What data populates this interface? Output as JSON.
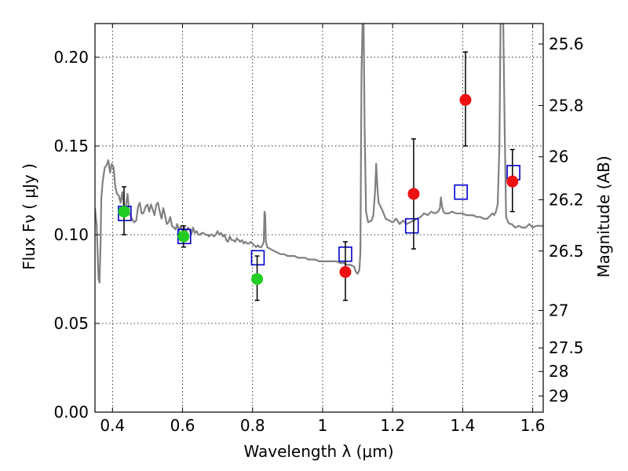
{
  "chart_data": {
    "type": "scatter",
    "xlabel": "Wavelength  λ (μm)",
    "ylabel": "Flux  Fν  ( μJy )",
    "y2label": "Magnitude (AB)",
    "xlim": [
      0.35,
      1.63
    ],
    "ylim": [
      0.0,
      0.219
    ],
    "grid": true,
    "x_ticks": [
      0.4,
      0.6,
      0.8,
      1.0,
      1.2,
      1.4,
      1.6
    ],
    "x_tick_labels": [
      "0.4",
      "0.6",
      "0.8",
      "1",
      "1.2",
      "1.4",
      "1.6"
    ],
    "y_ticks": [
      0.0,
      0.05,
      0.1,
      0.15,
      0.2
    ],
    "y_tick_labels": [
      "0.00",
      "0.05",
      "0.10",
      "0.15",
      "0.20"
    ],
    "y2_ticks": [
      {
        "label": "25.6",
        "flux": 0.2075
      },
      {
        "label": "25.8",
        "flux": 0.1728
      },
      {
        "label": "26",
        "flux": 0.1439
      },
      {
        "label": "26.2",
        "flux": 0.1197
      },
      {
        "label": "26.5",
        "flux": 0.0908
      },
      {
        "label": "27",
        "flux": 0.0573
      },
      {
        "label": "27.5",
        "flux": 0.0362
      },
      {
        "label": "28",
        "flux": 0.0229
      },
      {
        "label": "29",
        "flux": 0.0091
      }
    ],
    "series": [
      {
        "kind": "line",
        "color": "#808080",
        "points": [
          [
            0.35,
            0.115
          ],
          [
            0.355,
            0.105
          ],
          [
            0.36,
            0.075
          ],
          [
            0.363,
            0.073
          ],
          [
            0.366,
            0.095
          ],
          [
            0.368,
            0.12
          ],
          [
            0.372,
            0.13
          ],
          [
            0.378,
            0.138
          ],
          [
            0.383,
            0.139
          ],
          [
            0.388,
            0.142
          ],
          [
            0.393,
            0.135
          ],
          [
            0.398,
            0.14
          ],
          [
            0.403,
            0.138
          ],
          [
            0.408,
            0.127
          ],
          [
            0.413,
            0.123
          ],
          [
            0.418,
            0.122
          ],
          [
            0.423,
            0.118
          ],
          [
            0.428,
            0.124
          ],
          [
            0.433,
            0.115
          ],
          [
            0.438,
            0.116
          ],
          [
            0.443,
            0.123
          ],
          [
            0.448,
            0.112
          ],
          [
            0.455,
            0.109
          ],
          [
            0.462,
            0.107
          ],
          [
            0.468,
            0.108
          ],
          [
            0.473,
            0.116
          ],
          [
            0.478,
            0.118
          ],
          [
            0.483,
            0.112
          ],
          [
            0.488,
            0.112
          ],
          [
            0.495,
            0.116
          ],
          [
            0.5,
            0.117
          ],
          [
            0.505,
            0.113
          ],
          [
            0.51,
            0.117
          ],
          [
            0.515,
            0.114
          ],
          [
            0.52,
            0.111
          ],
          [
            0.525,
            0.117
          ],
          [
            0.53,
            0.118
          ],
          [
            0.535,
            0.113
          ],
          [
            0.54,
            0.109
          ],
          [
            0.545,
            0.115
          ],
          [
            0.55,
            0.111
          ],
          [
            0.555,
            0.106
          ],
          [
            0.56,
            0.107
          ],
          [
            0.565,
            0.11
          ],
          [
            0.57,
            0.105
          ],
          [
            0.575,
            0.104
          ],
          [
            0.58,
            0.103
          ],
          [
            0.585,
            0.106
          ],
          [
            0.59,
            0.102
          ],
          [
            0.595,
            0.105
          ],
          [
            0.6,
            0.102
          ],
          [
            0.605,
            0.104
          ],
          [
            0.61,
            0.101
          ],
          [
            0.615,
            0.104
          ],
          [
            0.62,
            0.103
          ],
          [
            0.625,
            0.1
          ],
          [
            0.63,
            0.104
          ],
          [
            0.635,
            0.101
          ],
          [
            0.64,
            0.102
          ],
          [
            0.645,
            0.1
          ],
          [
            0.65,
            0.1
          ],
          [
            0.655,
            0.101
          ],
          [
            0.66,
            0.101
          ],
          [
            0.665,
            0.1
          ],
          [
            0.67,
            0.1
          ],
          [
            0.675,
            0.099
          ],
          [
            0.68,
            0.1
          ],
          [
            0.685,
            0.1
          ],
          [
            0.69,
            0.099
          ],
          [
            0.695,
            0.1
          ],
          [
            0.7,
            0.102
          ],
          [
            0.705,
            0.1
          ],
          [
            0.71,
            0.101
          ],
          [
            0.715,
            0.099
          ],
          [
            0.72,
            0.1
          ],
          [
            0.725,
            0.097
          ],
          [
            0.73,
            0.096
          ],
          [
            0.735,
            0.099
          ],
          [
            0.74,
            0.097
          ],
          [
            0.745,
            0.097
          ],
          [
            0.75,
            0.096
          ],
          [
            0.755,
            0.098
          ],
          [
            0.76,
            0.097
          ],
          [
            0.765,
            0.096
          ],
          [
            0.77,
            0.097
          ],
          [
            0.775,
            0.095
          ],
          [
            0.78,
            0.096
          ],
          [
            0.785,
            0.095
          ],
          [
            0.79,
            0.095
          ],
          [
            0.795,
            0.096
          ],
          [
            0.8,
            0.095
          ],
          [
            0.805,
            0.094
          ],
          [
            0.81,
            0.093
          ],
          [
            0.815,
            0.094
          ],
          [
            0.82,
            0.093
          ],
          [
            0.825,
            0.093
          ],
          [
            0.828,
            0.094
          ],
          [
            0.832,
            0.096
          ],
          [
            0.834,
            0.113
          ],
          [
            0.836,
            0.111
          ],
          [
            0.838,
            0.096
          ],
          [
            0.842,
            0.093
          ],
          [
            0.85,
            0.092
          ],
          [
            0.86,
            0.091
          ],
          [
            0.87,
            0.09
          ],
          [
            0.88,
            0.089
          ],
          [
            0.89,
            0.089
          ],
          [
            0.9,
            0.088
          ],
          [
            0.91,
            0.088
          ],
          [
            0.92,
            0.088
          ],
          [
            0.93,
            0.087
          ],
          [
            0.94,
            0.087
          ],
          [
            0.95,
            0.087
          ],
          [
            0.96,
            0.086
          ],
          [
            0.97,
            0.086
          ],
          [
            0.98,
            0.086
          ],
          [
            0.99,
            0.085
          ],
          [
            1.0,
            0.085
          ],
          [
            1.01,
            0.085
          ],
          [
            1.02,
            0.085
          ],
          [
            1.03,
            0.085
          ],
          [
            1.04,
            0.085
          ],
          [
            1.05,
            0.084
          ],
          [
            1.06,
            0.084
          ],
          [
            1.07,
            0.083
          ],
          [
            1.08,
            0.083
          ],
          [
            1.09,
            0.082
          ],
          [
            1.095,
            0.079
          ],
          [
            1.1,
            0.078
          ],
          [
            1.105,
            0.08
          ],
          [
            1.108,
            0.09
          ],
          [
            1.111,
            0.19
          ],
          [
            1.114,
            0.219
          ],
          [
            1.117,
            0.219
          ],
          [
            1.12,
            0.16
          ],
          [
            1.124,
            0.113
          ],
          [
            1.13,
            0.107
          ],
          [
            1.14,
            0.108
          ],
          [
            1.145,
            0.111
          ],
          [
            1.15,
            0.125
          ],
          [
            1.153,
            0.14
          ],
          [
            1.157,
            0.125
          ],
          [
            1.16,
            0.118
          ],
          [
            1.17,
            0.114
          ],
          [
            1.18,
            0.109
          ],
          [
            1.19,
            0.108
          ],
          [
            1.2,
            0.107
          ],
          [
            1.21,
            0.109
          ],
          [
            1.22,
            0.106
          ],
          [
            1.23,
            0.108
          ],
          [
            1.24,
            0.106
          ],
          [
            1.25,
            0.107
          ],
          [
            1.26,
            0.108
          ],
          [
            1.27,
            0.109
          ],
          [
            1.28,
            0.11
          ],
          [
            1.29,
            0.112
          ],
          [
            1.3,
            0.111
          ],
          [
            1.31,
            0.113
          ],
          [
            1.32,
            0.112
          ],
          [
            1.33,
            0.113
          ],
          [
            1.335,
            0.115
          ],
          [
            1.338,
            0.121
          ],
          [
            1.341,
            0.116
          ],
          [
            1.345,
            0.113
          ],
          [
            1.35,
            0.112
          ],
          [
            1.36,
            0.112
          ],
          [
            1.37,
            0.113
          ],
          [
            1.38,
            0.112
          ],
          [
            1.39,
            0.112
          ],
          [
            1.4,
            0.112
          ],
          [
            1.41,
            0.111
          ],
          [
            1.42,
            0.111
          ],
          [
            1.43,
            0.111
          ],
          [
            1.44,
            0.11
          ],
          [
            1.45,
            0.11
          ],
          [
            1.46,
            0.109
          ],
          [
            1.47,
            0.109
          ],
          [
            1.48,
            0.111
          ],
          [
            1.485,
            0.112
          ],
          [
            1.49,
            0.111
          ],
          [
            1.495,
            0.113
          ],
          [
            1.5,
            0.117
          ],
          [
            1.505,
            0.15
          ],
          [
            1.508,
            0.219
          ],
          [
            1.512,
            0.219
          ],
          [
            1.516,
            0.219
          ],
          [
            1.52,
            0.16
          ],
          [
            1.524,
            0.11
          ],
          [
            1.53,
            0.107
          ],
          [
            1.535,
            0.106
          ],
          [
            1.54,
            0.106
          ],
          [
            1.545,
            0.105
          ],
          [
            1.55,
            0.104
          ],
          [
            1.56,
            0.105
          ],
          [
            1.57,
            0.104
          ],
          [
            1.58,
            0.104
          ],
          [
            1.59,
            0.106
          ],
          [
            1.6,
            0.104
          ],
          [
            1.61,
            0.105
          ],
          [
            1.62,
            0.105
          ],
          [
            1.63,
            0.105
          ]
        ]
      },
      {
        "kind": "open-square",
        "color": "#0000cc",
        "points": [
          [
            0.435,
            0.112
          ],
          [
            0.605,
            0.099
          ],
          [
            0.815,
            0.087
          ],
          [
            1.065,
            0.089
          ],
          [
            1.255,
            0.105
          ],
          [
            1.395,
            0.124
          ],
          [
            1.545,
            0.135
          ]
        ]
      },
      {
        "kind": "filled-circle",
        "color": "#22cc22",
        "points": [
          {
            "x": 0.433,
            "y": 0.113,
            "ylo": 0.1,
            "yhi": 0.127
          },
          {
            "x": 0.603,
            "y": 0.099,
            "ylo": 0.093,
            "yhi": 0.105
          },
          {
            "x": 0.813,
            "y": 0.075,
            "ylo": 0.063,
            "yhi": 0.088
          }
        ]
      },
      {
        "kind": "filled-circle",
        "color": "#ee1111",
        "points": [
          {
            "x": 1.065,
            "y": 0.079,
            "ylo": 0.063,
            "yhi": 0.096
          },
          {
            "x": 1.26,
            "y": 0.123,
            "ylo": 0.092,
            "yhi": 0.154
          },
          {
            "x": 1.408,
            "y": 0.176,
            "ylo": 0.15,
            "yhi": 0.203
          },
          {
            "x": 1.542,
            "y": 0.13,
            "ylo": 0.113,
            "yhi": 0.148
          }
        ]
      }
    ]
  }
}
